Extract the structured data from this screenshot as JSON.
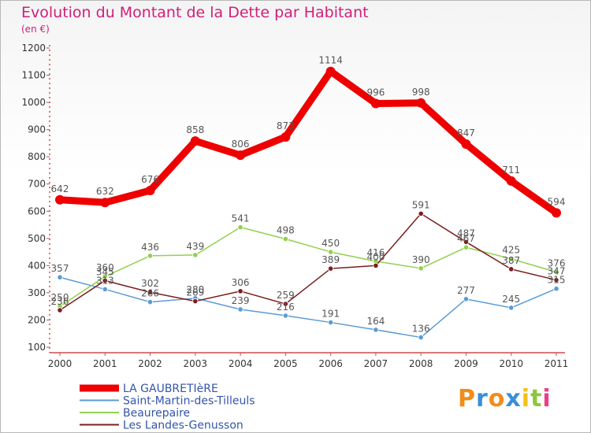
{
  "chart_title": "Evolution du Montant de la Dette par Habitant",
  "chart_subtitle": "(en €)",
  "logo": {
    "letters": [
      "P",
      "r",
      "o",
      "x",
      "i",
      "t",
      "i"
    ],
    "colors": [
      "#f28c1a",
      "#3a8fd6",
      "#f28c1a",
      "#3a8fd6",
      "#f2c21a",
      "#8cc63f",
      "#e8408a"
    ]
  },
  "chart_data": {
    "type": "line",
    "title": "Evolution du Montant de la Dette par Habitant",
    "ylabel": "(en €)",
    "x": [
      "2000",
      "2001",
      "2002",
      "2003",
      "2004",
      "2005",
      "2006",
      "2007",
      "2008",
      "2009",
      "2010",
      "2011"
    ],
    "ylim": [
      100,
      1200
    ],
    "yticks": [
      "100",
      "200",
      "300",
      "400",
      "500",
      "600",
      "700",
      "800",
      "900",
      "1000",
      "1100",
      "1200"
    ],
    "grid": false,
    "legend_position": "bottom-left",
    "series": [
      {
        "name": "LA GAUBRETIèRE",
        "color": "#ee0000",
        "width": 9,
        "values": [
          642,
          632,
          676,
          858,
          806,
          873,
          1114,
          996,
          998,
          847,
          711,
          594
        ],
        "labels": [
          "642",
          "632",
          "676",
          "858",
          "806",
          "873",
          "1114",
          "996",
          "998",
          "847",
          "711",
          "594"
        ]
      },
      {
        "name": "Saint-Martin-des-Tilleuls",
        "color": "#5b9bd5",
        "width": 1.5,
        "values": [
          357,
          313,
          266,
          280,
          239,
          216,
          191,
          164,
          136,
          277,
          245,
          315
        ],
        "labels": [
          "357",
          "313",
          "266",
          "280",
          "239",
          "216",
          "191",
          "164",
          "136",
          "277",
          "245",
          "315"
        ]
      },
      {
        "name": "Beaurepaire",
        "color": "#92d050",
        "width": 1.5,
        "values": [
          250,
          360,
          436,
          439,
          541,
          498,
          450,
          416,
          390,
          467,
          425,
          376
        ],
        "labels": [
          "250",
          "360",
          "436",
          "439",
          "541",
          "498",
          "450",
          "416",
          "390",
          "467",
          "425",
          "376"
        ]
      },
      {
        "name": "Les Landes-Genusson",
        "color": "#7b1e1e",
        "width": 1.5,
        "values": [
          236,
          345,
          302,
          269,
          306,
          259,
          389,
          400,
          591,
          487,
          387,
          347
        ],
        "labels": [
          "236",
          "345",
          "302",
          "269",
          "306",
          "259",
          "389",
          "400",
          "591",
          "487",
          "387",
          "347"
        ]
      }
    ]
  }
}
